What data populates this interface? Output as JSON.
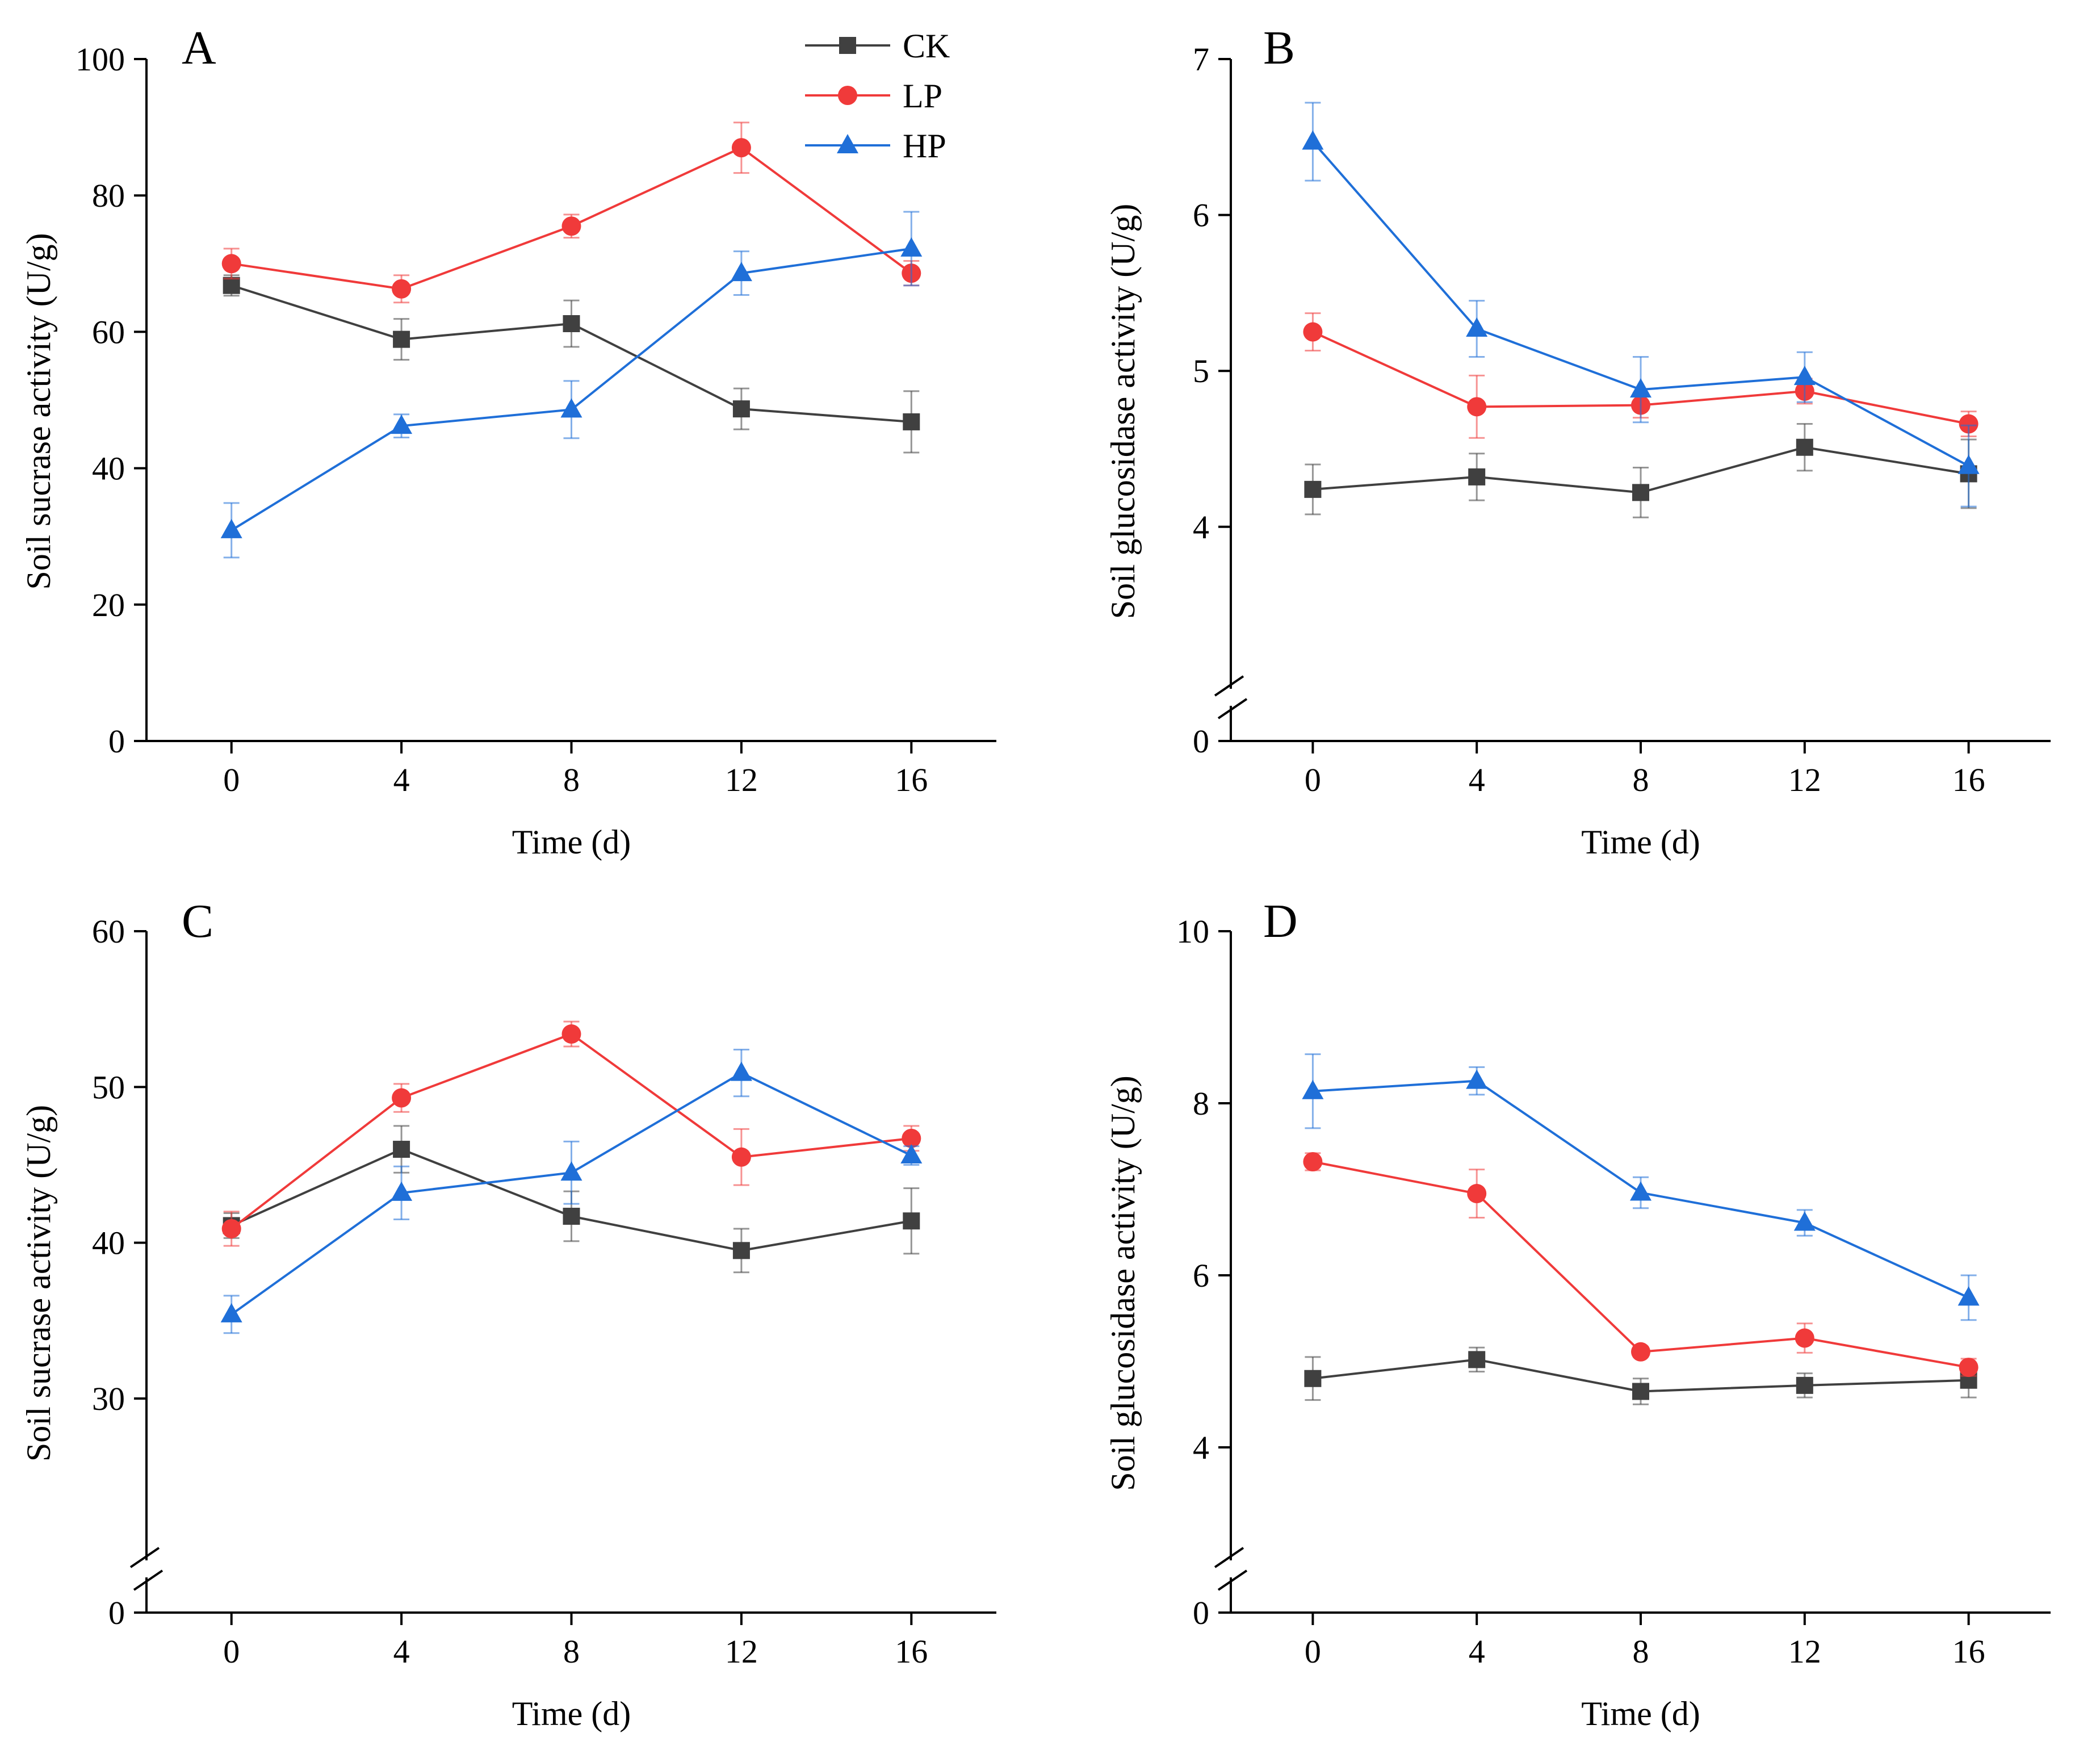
{
  "figure": {
    "series_styles": [
      {
        "name": "CK",
        "color": "#404040",
        "marker": "square"
      },
      {
        "name": "LP",
        "color": "#f03a3a",
        "marker": "circle"
      },
      {
        "name": "HP",
        "color": "#1f6fd8",
        "marker": "triangle"
      }
    ],
    "legend": {
      "position": "top-right of panel A",
      "entries": [
        "CK",
        "LP",
        "HP"
      ]
    }
  },
  "chart_data": [
    {
      "panel": "A",
      "type": "line",
      "xlabel": "Time (d)",
      "ylabel": "Soil sucrase activity (U/g)",
      "x": [
        0,
        4,
        8,
        12,
        16
      ],
      "xticks": [
        "0",
        "4",
        "8",
        "12",
        "16"
      ],
      "yticks": [
        "0",
        "20",
        "40",
        "60",
        "80",
        "100"
      ],
      "ylim": [
        0,
        100
      ],
      "axis_break": false,
      "series": [
        {
          "name": "CK",
          "values": [
            66.8,
            58.9,
            61.2,
            48.7,
            46.8
          ],
          "errors": [
            1.5,
            3.0,
            3.4,
            3.0,
            4.5
          ]
        },
        {
          "name": "LP",
          "values": [
            70.0,
            66.3,
            75.5,
            87.0,
            68.6
          ],
          "errors": [
            2.2,
            2.0,
            1.7,
            3.7,
            1.8
          ]
        },
        {
          "name": "HP",
          "values": [
            30.9,
            46.2,
            48.6,
            68.6,
            72.2
          ],
          "errors": [
            4.0,
            1.7,
            4.2,
            3.2,
            5.4
          ]
        }
      ]
    },
    {
      "panel": "B",
      "type": "line",
      "xlabel": "Time (d)",
      "ylabel": "Soil glucosidase activity (U/g)",
      "x": [
        0,
        4,
        8,
        12,
        16
      ],
      "xticks": [
        "0",
        "4",
        "8",
        "12",
        "16"
      ],
      "yticks": [
        "0",
        "4",
        "5",
        "6",
        "7"
      ],
      "ylim": [
        0,
        7
      ],
      "axis_break": true,
      "break_range": [
        0,
        3.3
      ],
      "series": [
        {
          "name": "CK",
          "values": [
            4.24,
            4.32,
            4.22,
            4.51,
            4.34
          ],
          "errors": [
            0.16,
            0.15,
            0.16,
            0.15,
            0.22
          ]
        },
        {
          "name": "LP",
          "values": [
            5.25,
            4.77,
            4.78,
            4.87,
            4.66
          ],
          "errors": [
            0.12,
            0.2,
            0.08,
            0.08,
            0.08
          ]
        },
        {
          "name": "HP",
          "values": [
            6.47,
            5.27,
            4.88,
            4.96,
            4.39
          ],
          "errors": [
            0.25,
            0.18,
            0.21,
            0.16,
            0.26
          ]
        }
      ]
    },
    {
      "panel": "C",
      "type": "line",
      "xlabel": "Time (d)",
      "ylabel": "Soil sucrase activity (U/g)",
      "x": [
        0,
        4,
        8,
        12,
        16
      ],
      "xticks": [
        "0",
        "4",
        "8",
        "12",
        "16"
      ],
      "yticks": [
        "0",
        "30",
        "40",
        "50",
        "60"
      ],
      "ylim": [
        0,
        60
      ],
      "axis_break": true,
      "break_range": [
        0,
        23
      ],
      "series": [
        {
          "name": "CK",
          "values": [
            41.1,
            46.0,
            41.7,
            39.5,
            41.4
          ],
          "errors": [
            0.8,
            1.5,
            1.6,
            1.4,
            2.1
          ]
        },
        {
          "name": "LP",
          "values": [
            40.9,
            49.3,
            53.4,
            45.5,
            46.7
          ],
          "errors": [
            1.1,
            0.9,
            0.8,
            1.8,
            0.8
          ]
        },
        {
          "name": "HP",
          "values": [
            35.4,
            43.2,
            44.5,
            50.9,
            45.6
          ],
          "errors": [
            1.2,
            1.7,
            2.0,
            1.5,
            0.6
          ]
        }
      ]
    },
    {
      "panel": "D",
      "type": "line",
      "xlabel": "Time (d)",
      "ylabel": "Soil glucosidase activity (U/g)",
      "x": [
        0,
        4,
        8,
        12,
        16
      ],
      "xticks": [
        "0",
        "4",
        "8",
        "12",
        "16"
      ],
      "yticks": [
        "0",
        "4",
        "6",
        "8",
        "10"
      ],
      "ylim": [
        0,
        10
      ],
      "axis_break": true,
      "break_range": [
        0,
        3.3
      ],
      "series": [
        {
          "name": "CK",
          "values": [
            4.8,
            5.02,
            4.65,
            4.72,
            4.78
          ],
          "errors": [
            0.25,
            0.14,
            0.15,
            0.14,
            0.2
          ]
        },
        {
          "name": "LP",
          "values": [
            7.32,
            6.95,
            5.11,
            5.27,
            4.93
          ],
          "errors": [
            0.1,
            0.28,
            0.06,
            0.17,
            0.1
          ]
        },
        {
          "name": "HP",
          "values": [
            8.14,
            8.26,
            6.96,
            6.61,
            5.74
          ],
          "errors": [
            0.43,
            0.16,
            0.18,
            0.15,
            0.26
          ]
        }
      ]
    }
  ]
}
